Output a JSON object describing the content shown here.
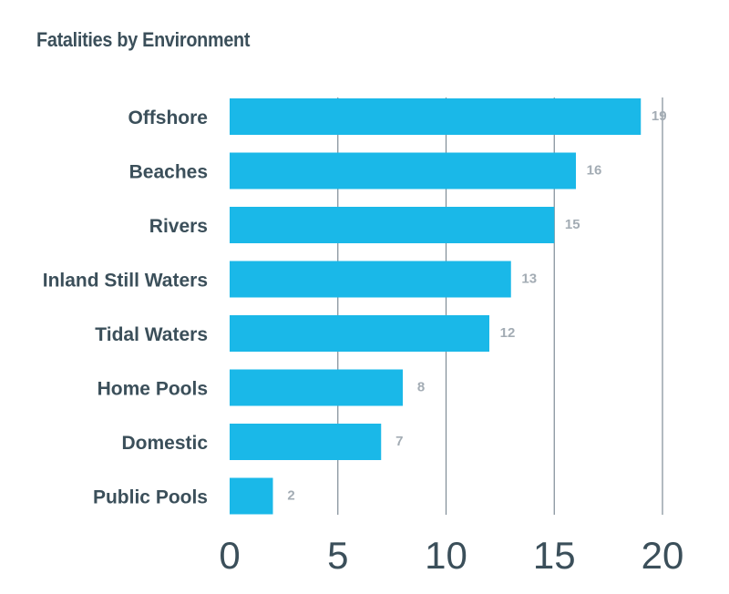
{
  "title": "Fatalities by Environment",
  "colors": {
    "bar": "#1ab8e8",
    "grid": "#7f8c96",
    "category_text": "#3b4f5a",
    "value_text": "#a3acb4"
  },
  "chart_data": {
    "type": "bar",
    "orientation": "horizontal",
    "title": "Fatalities by Environment",
    "categories": [
      "Offshore",
      "Beaches",
      "Rivers",
      "Inland Still Waters",
      "Tidal Waters",
      "Home Pools",
      "Domestic",
      "Public Pools"
    ],
    "values": [
      19,
      16,
      15,
      13,
      12,
      8,
      7,
      2
    ],
    "value_labels": [
      "19",
      "16",
      "15",
      "13",
      "12",
      "8",
      "7",
      "2"
    ],
    "xlim": [
      0,
      20
    ],
    "xticks": [
      0,
      5,
      10,
      15,
      20
    ],
    "xtick_labels": [
      "0",
      "5",
      "10",
      "15",
      "20"
    ],
    "grid": true,
    "legend": "none"
  }
}
